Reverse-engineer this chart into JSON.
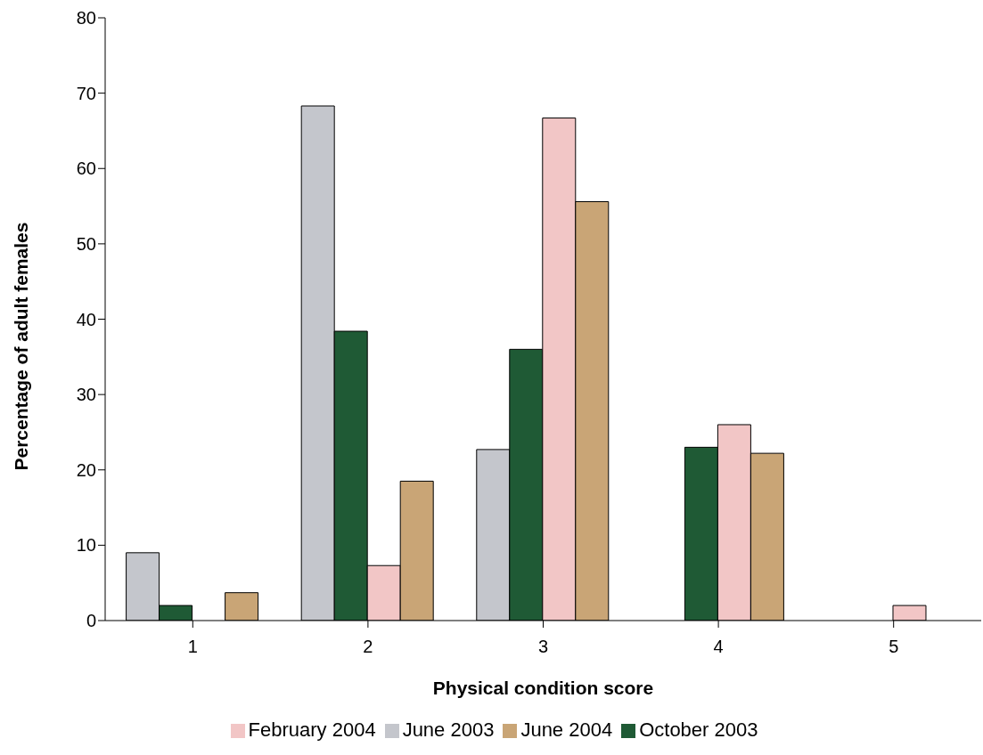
{
  "chart_data": {
    "type": "bar",
    "xlabel": "Physical condition score",
    "ylabel": "Percentage of adult females",
    "categories": [
      "1",
      "2",
      "3",
      "4",
      "5"
    ],
    "series": [
      {
        "name": "June 2003",
        "color": "#c4c6cc",
        "values": [
          9,
          68.3,
          22.7,
          0,
          0
        ]
      },
      {
        "name": "October 2003",
        "color": "#1f5a35",
        "values": [
          2,
          38.4,
          36,
          23,
          0
        ]
      },
      {
        "name": "February 2004",
        "color": "#f2c6c6",
        "values": [
          0,
          7.3,
          66.7,
          26,
          2
        ]
      },
      {
        "name": "June 2004",
        "color": "#c9a576",
        "values": [
          3.7,
          18.5,
          55.6,
          22.2,
          0
        ]
      }
    ],
    "ylim": [
      0,
      80
    ],
    "yticks": [
      0,
      10,
      20,
      30,
      40,
      50,
      60,
      70,
      80
    ],
    "grid": false,
    "legend": "bottom"
  }
}
